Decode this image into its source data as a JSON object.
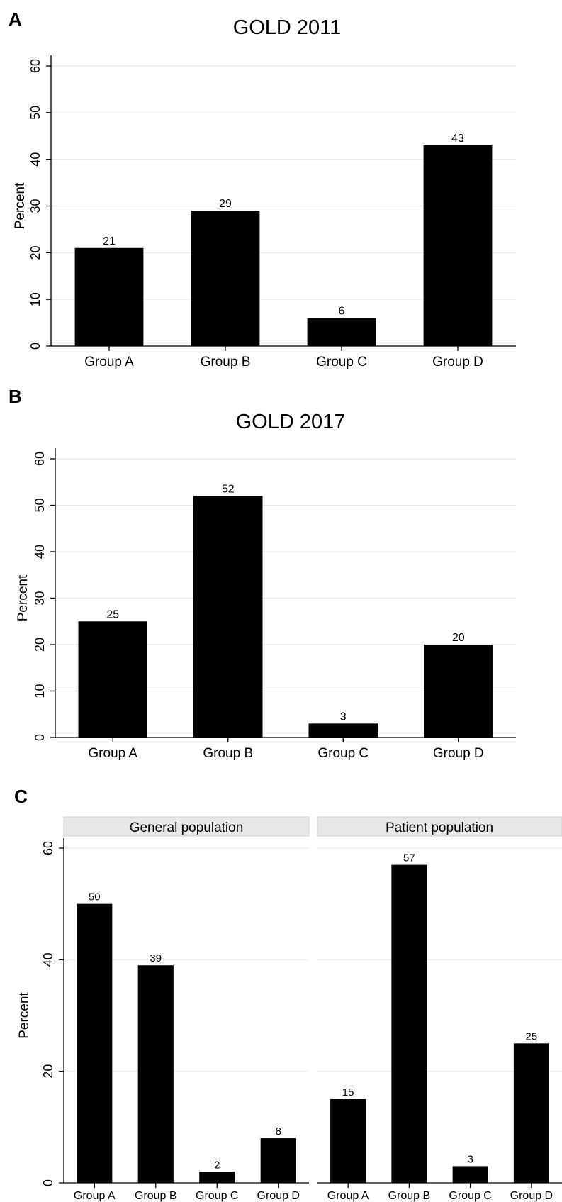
{
  "panels": {
    "A": {
      "letter": "A",
      "title": "GOLD 2011"
    },
    "B": {
      "letter": "B",
      "title": "GOLD 2017"
    },
    "C": {
      "letter": "C",
      "facets": [
        "General population",
        "Patient population"
      ]
    }
  },
  "chart_data": [
    {
      "type": "bar",
      "title": "GOLD 2011",
      "ylabel": "Percent",
      "xlabel": "",
      "categories": [
        "Group A",
        "Group B",
        "Group C",
        "Group D"
      ],
      "values": [
        21,
        29,
        6,
        43
      ],
      "data_labels": [
        "21",
        "29",
        "6",
        "43"
      ],
      "ylim": [
        0,
        60
      ],
      "yticks": [
        0,
        10,
        20,
        30,
        40,
        50,
        60
      ],
      "grid": true,
      "bar_color": "#000000"
    },
    {
      "type": "bar",
      "title": "GOLD 2017",
      "ylabel": "Percent",
      "xlabel": "",
      "categories": [
        "Group A",
        "Group B",
        "Group C",
        "Group D"
      ],
      "values": [
        25,
        52,
        3,
        20
      ],
      "data_labels": [
        "25",
        "52",
        "3",
        "20"
      ],
      "ylim": [
        0,
        60
      ],
      "yticks": [
        0,
        10,
        20,
        30,
        40,
        50,
        60
      ],
      "grid": true,
      "bar_color": "#000000"
    },
    {
      "type": "bar",
      "ylabel": "Percent",
      "xlabel": "",
      "ylim": [
        0,
        60
      ],
      "yticks": [
        0,
        20,
        40,
        60
      ],
      "grid": true,
      "bar_color": "#000000",
      "facets": [
        {
          "label": "General population",
          "categories": [
            "Group A",
            "Group B",
            "Group C",
            "Group D"
          ],
          "values": [
            50,
            39,
            2,
            8
          ],
          "data_labels": [
            "50",
            "39",
            "2",
            "8"
          ]
        },
        {
          "label": "Patient population",
          "categories": [
            "Group A",
            "Group B",
            "Group C",
            "Group D"
          ],
          "values": [
            15,
            57,
            3,
            25
          ],
          "data_labels": [
            "15",
            "57",
            "3",
            "25"
          ]
        }
      ]
    }
  ]
}
